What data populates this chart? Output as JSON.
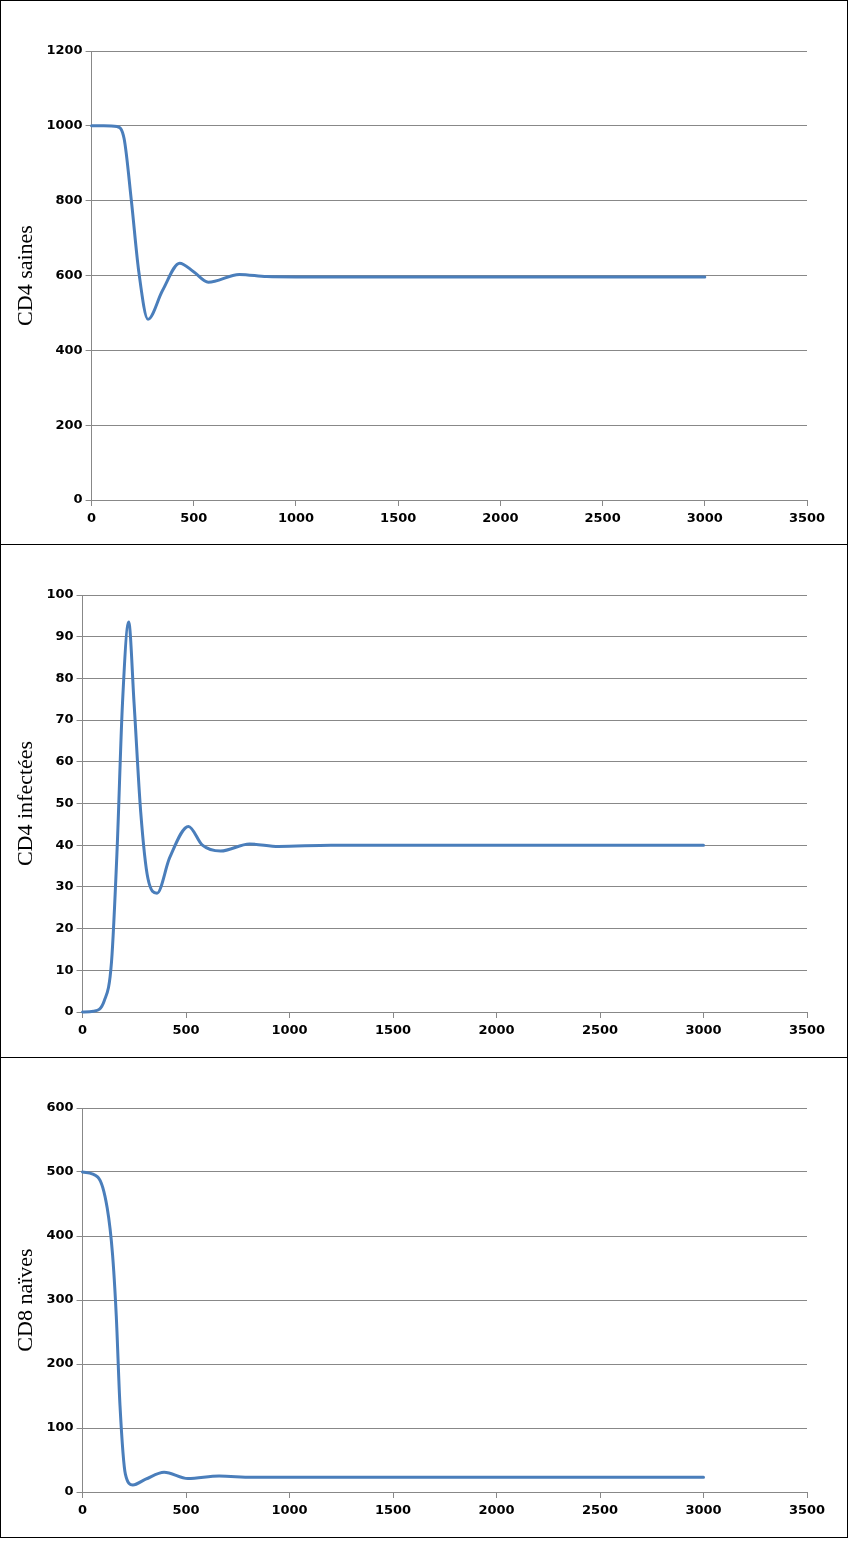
{
  "chart_data": [
    {
      "type": "line",
      "ylabel": "CD4 saines",
      "x": [
        0,
        60,
        124,
        159,
        195,
        231,
        276,
        347,
        431,
        499,
        571,
        723,
        857,
        1000,
        1500,
        2000,
        2500,
        3000
      ],
      "series": [
        {
          "color": "#4a7ebb",
          "values": [
            1000,
            1000,
            998,
            966,
            798,
            610,
            483,
            560,
            633,
            610,
            582,
            603,
            597,
            596,
            596,
            596,
            596,
            596
          ]
        }
      ],
      "xlim": [
        0,
        3500
      ],
      "xticks": [
        0,
        500,
        1000,
        1500,
        2000,
        2500,
        3000,
        3500
      ],
      "ylim": [
        0,
        1200
      ],
      "yticks": [
        0,
        200,
        400,
        600,
        800,
        1000,
        1200
      ],
      "grid": "y",
      "legend": false,
      "marker": "none"
    },
    {
      "type": "line",
      "ylabel": "CD4 infectées",
      "x": [
        0,
        53,
        105,
        140,
        167,
        193,
        223,
        249,
        281,
        316,
        360,
        421,
        512,
        579,
        667,
        807,
        947,
        1200,
        2000,
        3000
      ],
      "series": [
        {
          "color": "#4a7ebb",
          "values": [
            0,
            0.2,
            2.7,
            12,
            39,
            74,
            93.5,
            74,
            48,
            32,
            28.5,
            37,
            44.5,
            40,
            38.6,
            40.3,
            39.7,
            40,
            40,
            40
          ]
        }
      ],
      "xlim": [
        0,
        3500
      ],
      "xticks": [
        0,
        500,
        1000,
        1500,
        2000,
        2500,
        3000,
        3500
      ],
      "ylim": [
        0,
        100
      ],
      "yticks": [
        0,
        10,
        20,
        30,
        40,
        50,
        60,
        70,
        80,
        90,
        100
      ],
      "grid": "y",
      "legend": false,
      "marker": "none"
    },
    {
      "type": "line",
      "ylabel": "CD8 naïves",
      "x": [
        0,
        74,
        119,
        145,
        163,
        181,
        207,
        243,
        305,
        394,
        509,
        660,
        819,
        1000,
        2000,
        3000
      ],
      "series": [
        {
          "color": "#4a7ebb",
          "values": [
            500,
            492,
            444,
            371,
            275,
            135,
            28,
            11,
            20,
            31,
            21,
            25,
            23,
            23,
            23,
            23
          ]
        }
      ],
      "xlim": [
        0,
        3500
      ],
      "xticks": [
        0,
        500,
        1000,
        1500,
        2000,
        2500,
        3000,
        3500
      ],
      "ylim": [
        0,
        600
      ],
      "yticks": [
        0,
        100,
        200,
        300,
        400,
        500,
        600
      ],
      "grid": "y",
      "legend": false,
      "marker": "none"
    }
  ]
}
